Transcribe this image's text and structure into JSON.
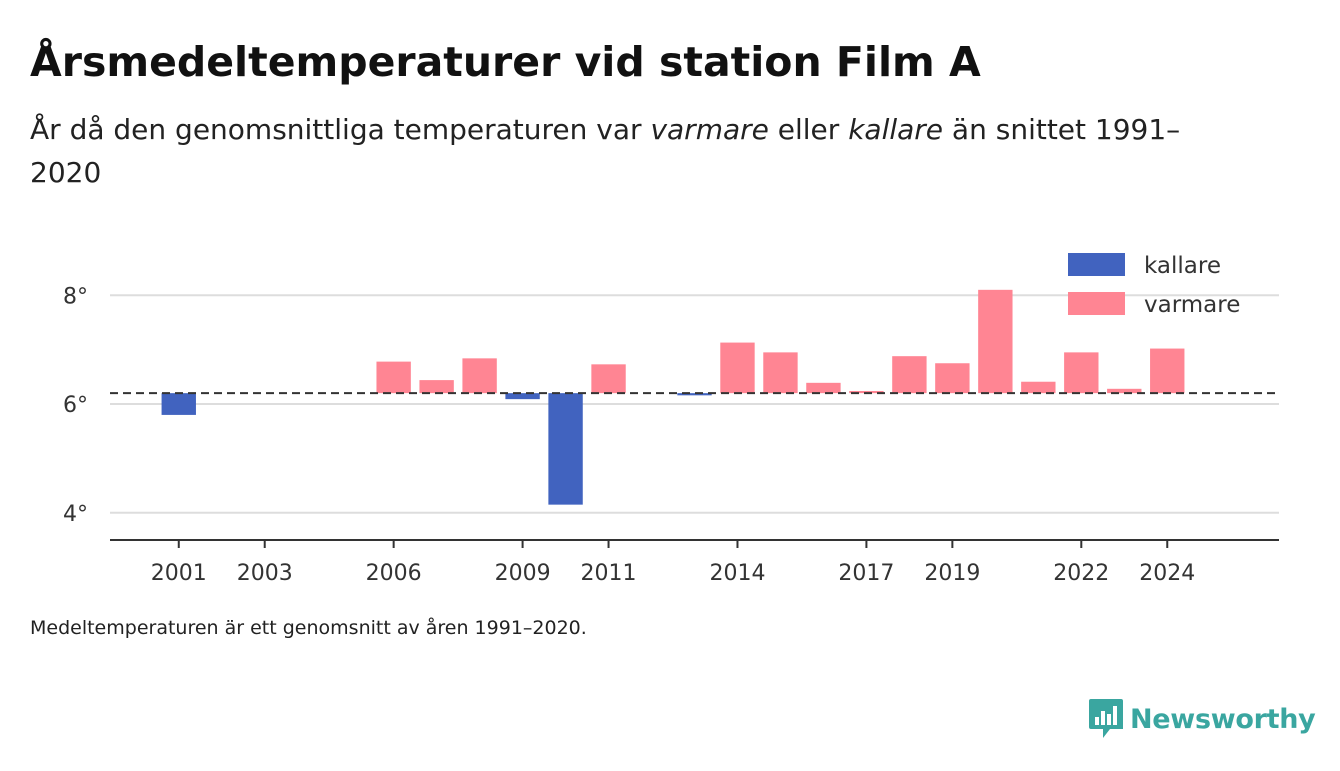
{
  "header": {
    "title": "Årsmedeltemperaturer vid station Film A",
    "subtitle_parts": [
      "År då den genomsnittliga temperaturen var ",
      "varmare",
      " eller ",
      "kallare",
      " än snittet 1991–2020"
    ]
  },
  "footnote": "Medeltemperaturen är ett genomsnitt av åren 1991–2020.",
  "brand": {
    "name": "Newsworthy",
    "color": "#3aa6a0"
  },
  "chart_data": {
    "type": "bar",
    "baseline": 6.2,
    "baseline_style": "dashed",
    "ylim": [
      3.5,
      9.2
    ],
    "yticks": [
      4,
      6,
      8
    ],
    "ytick_format": "{v}°",
    "grid": true,
    "xlim": [
      1999.4,
      2026.6
    ],
    "xticks": [
      2001,
      2003,
      2006,
      2009,
      2011,
      2014,
      2017,
      2019,
      2022,
      2024
    ],
    "legend": {
      "position": "top-right",
      "entries": [
        {
          "label": "kallare",
          "color": "#4163bf"
        },
        {
          "label": "varmare",
          "color": "#ff8593"
        }
      ]
    },
    "colors": {
      "colder": "#4163bf",
      "warmer": "#ff8593"
    },
    "points": [
      {
        "year": 2001,
        "value": 5.8
      },
      {
        "year": 2006,
        "value": 6.78
      },
      {
        "year": 2007,
        "value": 6.44
      },
      {
        "year": 2008,
        "value": 6.84
      },
      {
        "year": 2009,
        "value": 6.09
      },
      {
        "year": 2010,
        "value": 4.15
      },
      {
        "year": 2011,
        "value": 6.73
      },
      {
        "year": 2013,
        "value": 6.16
      },
      {
        "year": 2014,
        "value": 7.13
      },
      {
        "year": 2015,
        "value": 6.95
      },
      {
        "year": 2016,
        "value": 6.39
      },
      {
        "year": 2017,
        "value": 6.24
      },
      {
        "year": 2018,
        "value": 6.88
      },
      {
        "year": 2019,
        "value": 6.75
      },
      {
        "year": 2020,
        "value": 8.1
      },
      {
        "year": 2021,
        "value": 6.41
      },
      {
        "year": 2022,
        "value": 6.95
      },
      {
        "year": 2023,
        "value": 6.28
      },
      {
        "year": 2024,
        "value": 7.02
      }
    ]
  }
}
